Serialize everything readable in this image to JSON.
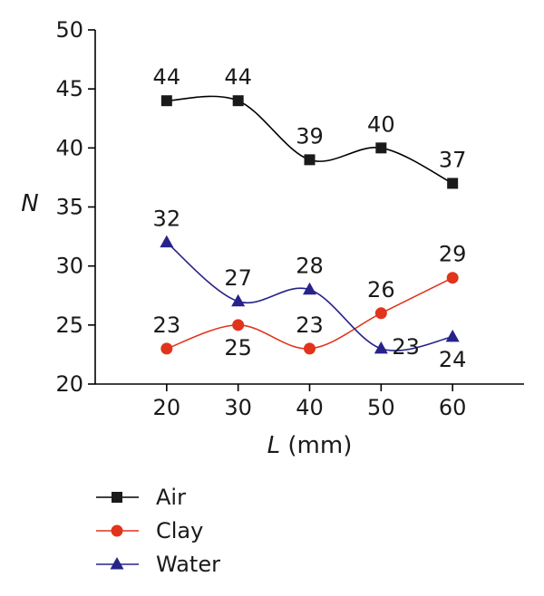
{
  "chart_data": {
    "type": "line",
    "x": [
      20,
      30,
      40,
      50,
      60
    ],
    "xlim": [
      10,
      70
    ],
    "ylim": [
      20,
      50
    ],
    "xticks": [
      20,
      30,
      40,
      50,
      60
    ],
    "yticks": [
      20,
      25,
      30,
      35,
      40,
      45,
      50
    ],
    "xlabel_var": "L",
    "xlabel_unit": " (mm)",
    "ylabel": "N",
    "smooth": true,
    "grid": false,
    "legend_position": "bottom-left",
    "series": [
      {
        "name": "Air",
        "color": "#1a1a1a",
        "line_color": "#000000",
        "marker": "square",
        "values": [
          44,
          44,
          39,
          40,
          37
        ],
        "labels": [
          "44",
          "44",
          "39",
          "40",
          "37"
        ],
        "label_pos": [
          "above",
          "above",
          "above",
          "above",
          "above"
        ]
      },
      {
        "name": "Clay",
        "color": "#e0341c",
        "line_color": "#e0341c",
        "marker": "circle",
        "values": [
          23,
          25,
          23,
          26,
          29
        ],
        "labels": [
          "23",
          "25",
          "23",
          "26",
          "29"
        ],
        "label_pos": [
          "above",
          "below",
          "above",
          "above",
          "above"
        ]
      },
      {
        "name": "Water",
        "color": "#27238a",
        "line_color": "#27238a",
        "marker": "triangle",
        "values": [
          32,
          27,
          28,
          23,
          24
        ],
        "labels": [
          "32",
          "27",
          "28",
          "23",
          "24"
        ],
        "label_pos": [
          "above",
          "above",
          "above",
          "right",
          "below"
        ]
      }
    ]
  }
}
